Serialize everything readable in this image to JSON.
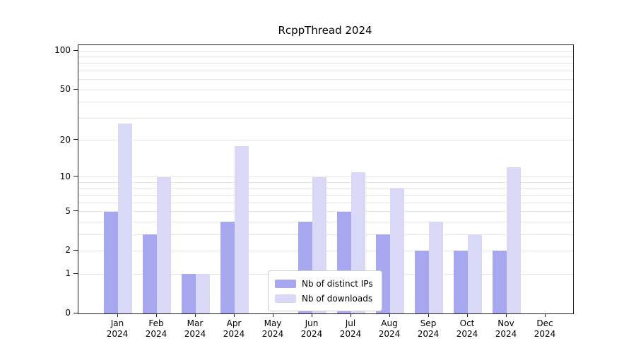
{
  "title": "RcppThread 2024",
  "chart_data": {
    "type": "bar",
    "title": "RcppThread 2024",
    "categories": [
      "Jan 2024",
      "Feb 2024",
      "Mar 2024",
      "Apr 2024",
      "May 2024",
      "Jun 2024",
      "Jul 2024",
      "Aug 2024",
      "Sep 2024",
      "Oct 2024",
      "Nov 2024",
      "Dec 2024"
    ],
    "series": [
      {
        "name": "Nb of distinct IPs",
        "color": "#a7a7f0",
        "values": [
          5,
          3,
          1,
          4,
          0,
          4,
          5,
          3,
          2,
          2,
          2,
          0
        ]
      },
      {
        "name": "Nb of downloads",
        "color": "#d9d9f7",
        "values": [
          27,
          10,
          1,
          18,
          0,
          10,
          11,
          8,
          4,
          3,
          12,
          0
        ]
      }
    ],
    "xlabel": "",
    "ylabel": "",
    "yscale": "log1p",
    "ylim": [
      0,
      110
    ],
    "y_ticks": [
      0,
      1,
      2,
      5,
      10,
      20,
      50,
      100
    ],
    "gridlines": [
      1,
      2,
      3,
      4,
      5,
      6,
      7,
      8,
      9,
      10,
      20,
      30,
      40,
      50,
      60,
      70,
      80,
      90,
      100
    ],
    "grid": true,
    "legend_position": "lower center"
  },
  "colors": {
    "background": "#ffffff",
    "grid": "#e6e6e6",
    "axis": "#1a1a1a",
    "legend_border": "#cccccc"
  }
}
